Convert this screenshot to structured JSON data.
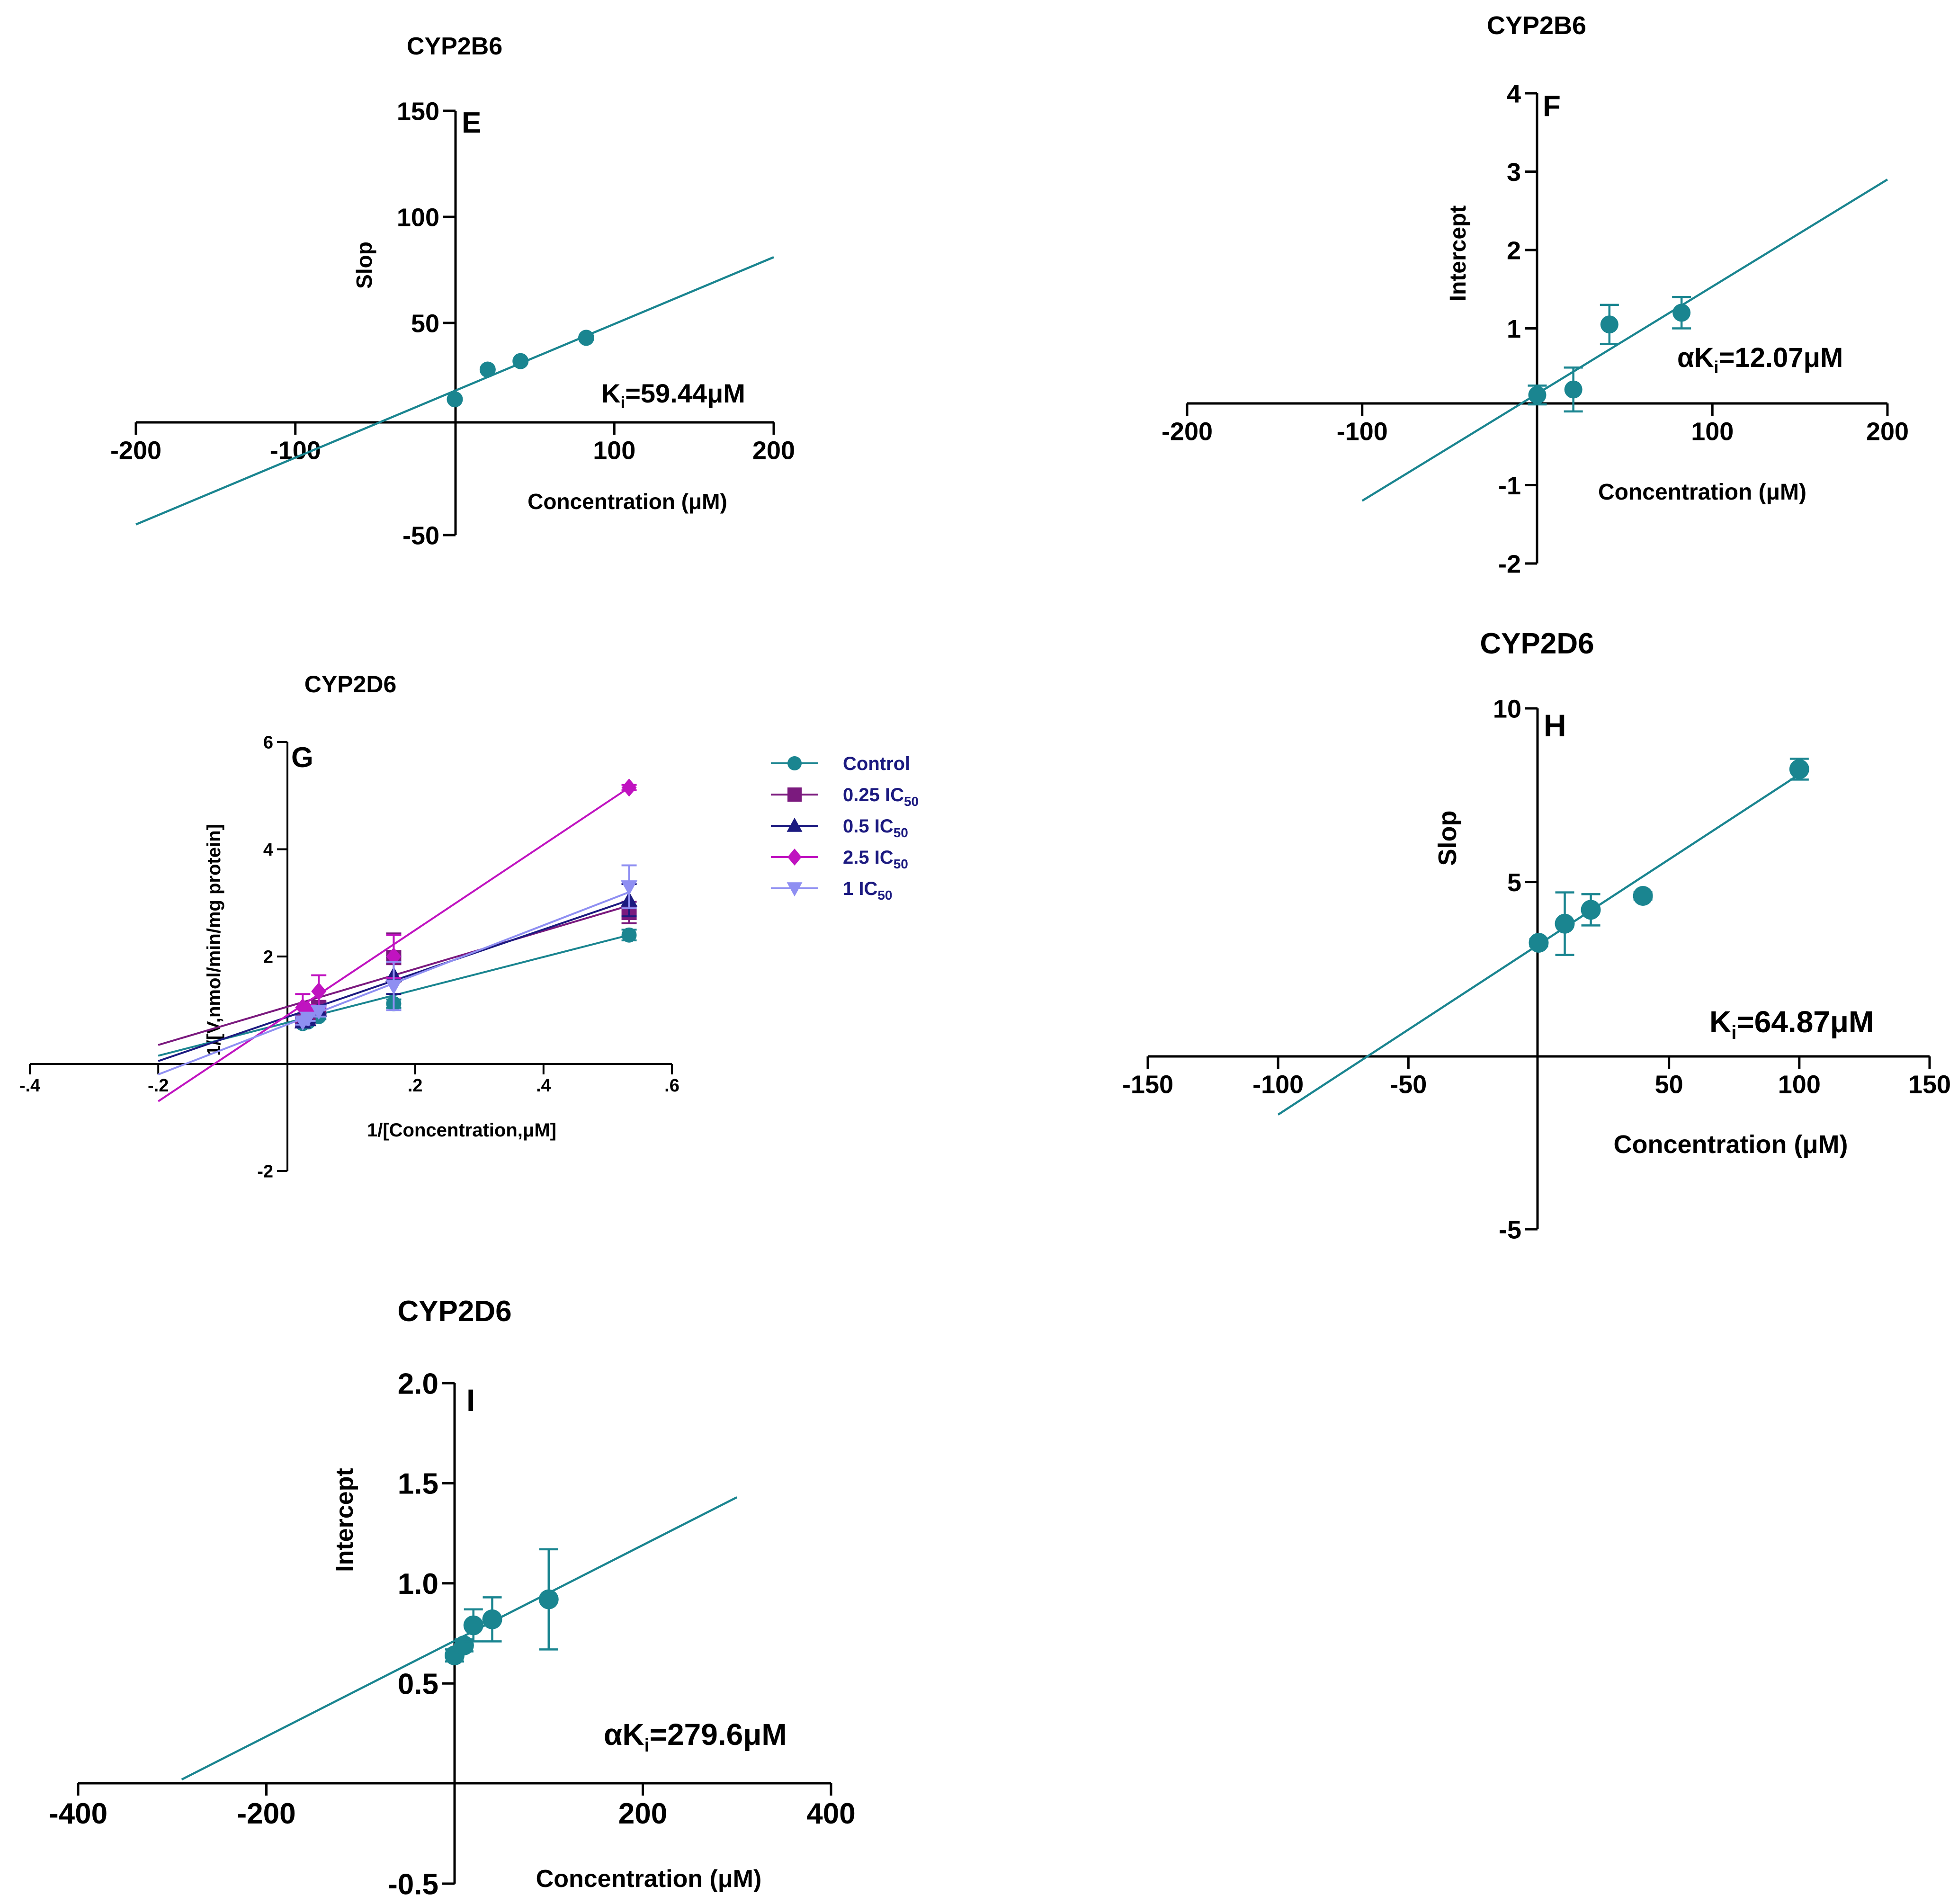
{
  "colors": {
    "teal": "#1a8590",
    "purple": "#7b1a7e",
    "navy": "#1c1a80",
    "magenta": "#c013c0",
    "lavender": "#8f8ff2",
    "legend_text": "#1c1a80"
  },
  "chart_data": [
    {
      "id": "E",
      "type": "scatter",
      "title": "CYP2B6",
      "panel_letter": "E",
      "xlabel": "Concentration (μM)",
      "ylabel": "Slop",
      "xlim": [
        -200,
        200
      ],
      "ylim": [
        -50,
        150
      ],
      "xticks": [
        -200,
        -100,
        100,
        200
      ],
      "yticks": [
        -50,
        50,
        100,
        150
      ],
      "points": [
        {
          "x": 0,
          "y": 14
        },
        {
          "x": 20.6,
          "y": 28
        },
        {
          "x": 41.2,
          "y": 32
        },
        {
          "x": 82.4,
          "y": 43
        }
      ],
      "fit": {
        "x": [
          -200,
          200
        ],
        "y": [
          -45,
          81
        ]
      },
      "annotation": {
        "prefix": "",
        "sub": "i",
        "value": "=59.44μM"
      }
    },
    {
      "id": "F",
      "type": "scatter",
      "title": "CYP2B6",
      "panel_letter": "F",
      "xlabel": "Concentration (μM)",
      "ylabel": "Intercept",
      "xlim": [
        -200,
        200
      ],
      "ylim": [
        -2,
        4
      ],
      "xticks": [
        -200,
        -100,
        100,
        200
      ],
      "yticks": [
        -2,
        -1,
        1,
        2,
        3,
        4
      ],
      "points": [
        {
          "x": 0,
          "y": 0.15,
          "err": 0.12
        },
        {
          "x": 20.6,
          "y": 0.22,
          "err": 0.28
        },
        {
          "x": 41.2,
          "y": 1.05,
          "err": 0.25
        },
        {
          "x": 82.4,
          "y": 1.2,
          "err": 0.2
        }
      ],
      "fit": {
        "x": [
          -100,
          200
        ],
        "y": [
          -1.2,
          2.9
        ]
      },
      "annotation": {
        "prefix": "α",
        "sub": "i",
        "value": "=12.07μM"
      }
    },
    {
      "id": "G",
      "type": "line",
      "title": "CYP2D6",
      "panel_letter": "G",
      "xlabel": "1/[Concentration,μM]",
      "ylabel": "1/[V,nmol/min/mg protein]",
      "xlim": [
        -0.4,
        0.6
      ],
      "ylim": [
        -2,
        6
      ],
      "xticks": [
        -0.4,
        -0.2,
        0.2,
        0.4,
        0.6
      ],
      "yticks": [
        -2,
        2,
        4,
        6
      ],
      "x": [
        0.025,
        0.0333,
        0.05,
        0.1667,
        0.5333
      ],
      "series": [
        {
          "name": "Control",
          "suffix": "",
          "color_key": "teal",
          "marker": "circle",
          "values": [
            0.75,
            0.78,
            0.88,
            1.12,
            2.4
          ],
          "errors": [
            0.05,
            0.05,
            0.05,
            0.08,
            0.1
          ],
          "fit": {
            "x": [
              -0.2,
              0.5333
            ],
            "y": [
              0.15,
              2.4
            ]
          }
        },
        {
          "name": "0.25 IC",
          "suffix": "50",
          "color_key": "purple",
          "marker": "square",
          "values": [
            0.8,
            0.85,
            1.05,
            1.98,
            2.82
          ],
          "errors": [
            0.05,
            0.05,
            0.1,
            0.45,
            0.2
          ],
          "fit": {
            "x": [
              -0.2,
              0.5333
            ],
            "y": [
              0.35,
              2.95
            ]
          }
        },
        {
          "name": "0.5 IC",
          "suffix": "50",
          "color_key": "navy",
          "marker": "triangle-up",
          "values": [
            0.78,
            0.82,
            1.0,
            1.65,
            3.05
          ],
          "errors": [
            0.05,
            0.05,
            0.08,
            0.35,
            0.3
          ],
          "fit": {
            "x": [
              -0.2,
              0.5333
            ],
            "y": [
              0.05,
              3.05
            ]
          }
        },
        {
          "name": "2.5 IC",
          "suffix": "50",
          "color_key": "magenta",
          "marker": "diamond",
          "values": [
            1.05,
            1.0,
            1.35,
            2.0,
            5.15
          ],
          "errors": [
            0.25,
            0.1,
            0.3,
            0.4,
            0.05
          ],
          "fit": {
            "x": [
              -0.2,
              0.5333
            ],
            "y": [
              -0.7,
              5.15
            ]
          }
        },
        {
          "name": "1 IC",
          "suffix": "50",
          "color_key": "lavender",
          "marker": "triangle-down",
          "values": [
            0.78,
            0.85,
            0.98,
            1.45,
            3.3
          ],
          "errors": [
            0.05,
            0.05,
            0.1,
            0.45,
            0.4
          ],
          "fit": {
            "x": [
              -0.2,
              0.5333
            ],
            "y": [
              -0.2,
              3.2
            ]
          }
        }
      ]
    },
    {
      "id": "H",
      "type": "scatter",
      "title": "CYP2D6",
      "panel_letter": "H",
      "xlabel": "Concentration (μM)",
      "ylabel": "Slop",
      "xlim": [
        -150,
        150
      ],
      "ylim": [
        -5,
        10
      ],
      "xticks": [
        -150,
        -100,
        -50,
        50,
        100,
        150
      ],
      "yticks": [
        -5,
        5,
        10
      ],
      "points": [
        {
          "x": 0,
          "y": 3.25,
          "err": 0.1
        },
        {
          "x": 10,
          "y": 3.8,
          "err": 0.9
        },
        {
          "x": 20,
          "y": 4.2,
          "err": 0.45
        },
        {
          "x": 40,
          "y": 4.6,
          "err": 0.1
        },
        {
          "x": 100,
          "y": 8.25,
          "err": 0.3
        }
      ],
      "fit": {
        "x": [
          -100,
          100
        ],
        "y": [
          -1.7,
          8.1
        ]
      },
      "annotation": {
        "prefix": "",
        "sub": "i",
        "value": "=64.87μM"
      }
    },
    {
      "id": "I",
      "type": "scatter",
      "title": "CYP2D6",
      "panel_letter": "I",
      "xlabel": "Concentration (μM)",
      "ylabel": "Intercept",
      "xlim": [
        -400,
        400
      ],
      "ylim": [
        -0.5,
        2.0
      ],
      "xticks": [
        -400,
        -200,
        200,
        400
      ],
      "yticks": [
        -0.5,
        0.5,
        1.0,
        1.5,
        2.0
      ],
      "points": [
        {
          "x": 0,
          "y": 0.64,
          "err": 0.03
        },
        {
          "x": 10,
          "y": 0.69,
          "err": 0.03
        },
        {
          "x": 20,
          "y": 0.79,
          "err": 0.08
        },
        {
          "x": 40,
          "y": 0.82,
          "err": 0.11
        },
        {
          "x": 100,
          "y": 0.92,
          "err": 0.25
        }
      ],
      "fit": {
        "x": [
          -290,
          300
        ],
        "y": [
          0.02,
          1.43
        ]
      },
      "annotation": {
        "prefix": "α",
        "sub": "i",
        "value": "=279.6μM"
      }
    }
  ]
}
